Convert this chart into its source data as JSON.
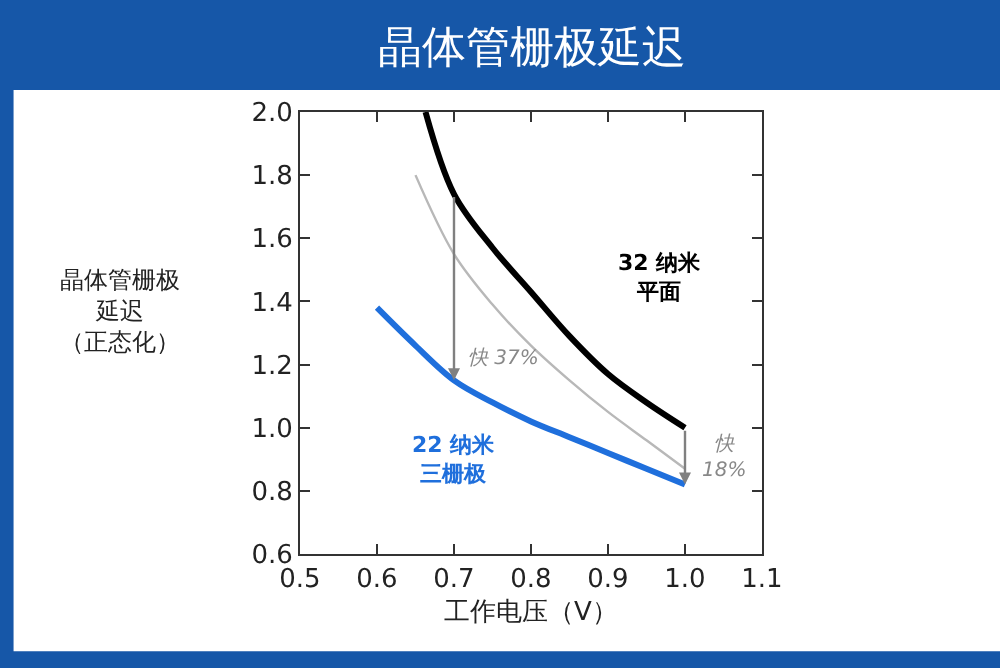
{
  "chart_data": {
    "type": "line",
    "title": "晶体管栅极延迟",
    "xlabel": "工作电压（V）",
    "ylabel": "晶体管栅极延迟（正态化）",
    "xlim": [
      0.5,
      1.1
    ],
    "xticks": [
      {
        "value": 0.5,
        "label": "0.5"
      },
      {
        "value": 0.6,
        "label": "0.6"
      },
      {
        "value": 0.7,
        "label": "0.7"
      },
      {
        "value": 0.8,
        "label": "0.8"
      },
      {
        "value": 0.9,
        "label": "0.9"
      },
      {
        "value": 1.0,
        "label": "1.0"
      },
      {
        "value": 1.1,
        "label": "1.1"
      }
    ],
    "ylim": [
      0.6,
      2.0
    ],
    "yticks": [
      {
        "value": 0.6,
        "label": "0.6"
      },
      {
        "value": 0.8,
        "label": "0.8"
      },
      {
        "value": 1.0,
        "label": "1.0"
      },
      {
        "value": 1.2,
        "label": "1.2"
      },
      {
        "value": 1.4,
        "label": "1.4"
      },
      {
        "value": 1.6,
        "label": "1.6"
      },
      {
        "value": 1.8,
        "label": "1.8"
      },
      {
        "value": 2.0,
        "label": "2.0"
      }
    ],
    "marker": "none",
    "line_style": "solid",
    "series": [
      {
        "color": "#000000",
        "x": [
          0.663,
          0.7,
          0.75,
          0.8,
          0.85,
          0.9,
          0.95,
          1.0
        ],
        "values": [
          2.0,
          1.74,
          1.57,
          1.43,
          1.29,
          1.17,
          1.08,
          1.0
        ]
      },
      {
        "color": "#b8b8b8",
        "x": [
          0.65,
          0.7,
          0.75,
          0.8,
          0.85,
          0.9,
          0.95,
          1.0
        ],
        "values": [
          1.8,
          1.55,
          1.39,
          1.26,
          1.15,
          1.05,
          0.96,
          0.87
        ]
      },
      {
        "color": "#1f6fdc",
        "x": [
          0.6,
          0.65,
          0.7,
          0.75,
          0.8,
          0.85,
          0.9,
          0.95,
          1.0
        ],
        "values": [
          1.38,
          1.26,
          1.15,
          1.08,
          1.02,
          0.97,
          0.92,
          0.87,
          0.82
        ]
      }
    ],
    "annotations": [
      {
        "text": "快 37%",
        "x": 0.7,
        "y": 1.15
      },
      {
        "text": "快\n18%",
        "x": 1.0,
        "y": 0.82
      },
      "32 纳米平面",
      "22 纳米三栅极"
    ]
  }
}
